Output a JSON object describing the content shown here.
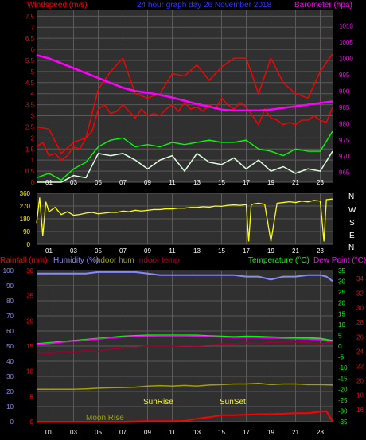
{
  "header": {
    "left": "Windspeed (m/s)",
    "center": "24 hour graph day   26 November 2018",
    "right": "Barometer (hpa)"
  },
  "colors": {
    "bg": "#000000",
    "plot_bg": "#303030",
    "grid": "#5a5a5a",
    "red": "#ff0000",
    "blue": "#3333ff",
    "magenta": "#ff00ff",
    "green": "#00ff00",
    "yellow": "#ffff00",
    "lavender": "#8888ff",
    "olive": "#a0a000",
    "darkred": "#a00030",
    "pale": "#ddffdd",
    "white": "#ffffff"
  },
  "x_hours": [
    "01",
    "03",
    "05",
    "07",
    "09",
    "11",
    "13",
    "15",
    "17",
    "19",
    "21",
    "23"
  ],
  "chart_data": [
    {
      "type": "line",
      "name": "wind_baro",
      "ylabel_left": "Windspeed (m/s)",
      "ylabel_right": "Barometer (hpa)",
      "y_left_ticks": [
        "0",
        "0.5",
        "1",
        "1.5",
        "2",
        "2.5",
        "3",
        "3.5",
        "4",
        "4.5",
        "5",
        "5.5",
        "6",
        "6.5",
        "7",
        "7.5"
      ],
      "y_left_range": [
        0,
        7.8
      ],
      "y_right_ticks": [
        "965",
        "970",
        "975",
        "980",
        "985",
        "990",
        "995",
        "1000",
        "1005",
        "1010"
      ],
      "y_right_range": [
        962,
        1015
      ],
      "x_range": [
        0,
        24
      ],
      "series": [
        {
          "name": "Barometer (hpa)",
          "color": "#ff00ff",
          "x": [
            0,
            1,
            2,
            3,
            4,
            5,
            6,
            7,
            8,
            9,
            10,
            11,
            12,
            13,
            14,
            15,
            16,
            17,
            18,
            19,
            20,
            21,
            22,
            23,
            24
          ],
          "y": [
            1001,
            1000,
            998.5,
            997,
            995.5,
            994,
            992.5,
            991,
            990,
            989.5,
            988.8,
            988,
            987,
            986,
            985.2,
            984.3,
            984,
            984,
            984,
            984.3,
            984.8,
            985.3,
            985.8,
            986.3,
            986.8
          ]
        },
        {
          "x": [
            0,
            0.5,
            1,
            1.5,
            2,
            2.5,
            3,
            3.5,
            4,
            4.5,
            5,
            5.5,
            6,
            6.5,
            7,
            7.5,
            8,
            8.5,
            9,
            9.5,
            10,
            10.5,
            11,
            11.5,
            12,
            12.5,
            13,
            13.5,
            14,
            14.5,
            15,
            15.5,
            16,
            16.5,
            17,
            17.5,
            18,
            18.5,
            19,
            19.5,
            20,
            20.5,
            21,
            21.5,
            22,
            22.5,
            23,
            23.5,
            24
          ],
          "y": [
            1.6,
            1.8,
            1.2,
            1.3,
            1.0,
            1.2,
            1.6,
            1.5,
            2.0,
            2.3,
            3.3,
            3.5,
            3.1,
            3.2,
            3.5,
            3.2,
            2.9,
            3.3,
            3.0,
            3.1,
            3.0,
            3.3,
            3.5,
            3.2,
            3.6,
            3.3,
            3.4,
            3.2,
            3.5,
            3.3,
            3.8,
            3.5,
            3.3,
            3.6,
            3.4,
            3.0,
            2.6,
            3.3,
            2.9,
            2.8,
            2.6,
            2.7,
            2.6,
            2.8,
            2.8,
            3.0,
            2.8,
            2.7,
            3.4
          ],
          "color": "#ff0000"
        },
        {
          "x": [
            0,
            1,
            2,
            3,
            4,
            5,
            6,
            7,
            8,
            9,
            10,
            11,
            12,
            13,
            14,
            15,
            16,
            17,
            18,
            19,
            20,
            21,
            22,
            23,
            24
          ],
          "y": [
            2.5,
            2.4,
            1.3,
            1.8,
            2.0,
            4.2,
            5.0,
            5.6,
            4.0,
            3.8,
            4.0,
            4.9,
            4.8,
            5.3,
            4.6,
            5.2,
            5.6,
            5.6,
            4.0,
            5.6,
            4.5,
            4.0,
            3.8,
            5.0,
            5.8
          ],
          "color": "#ff0000"
        },
        {
          "x": [
            0,
            1,
            2,
            3,
            4,
            5,
            6,
            7,
            8,
            9,
            10,
            11,
            12,
            13,
            14,
            15,
            16,
            17,
            18,
            19,
            20,
            21,
            22,
            23,
            24
          ],
          "y": [
            0.2,
            0.4,
            0.1,
            0.6,
            0.9,
            1.6,
            1.9,
            2.0,
            1.6,
            1.7,
            1.6,
            1.8,
            1.7,
            1.8,
            1.9,
            1.8,
            1.8,
            1.9,
            1.5,
            1.4,
            1.2,
            1.5,
            1.4,
            1.4,
            2.3
          ],
          "color": "#00ff00"
        },
        {
          "x": [
            0,
            1,
            2,
            3,
            4,
            5,
            6,
            7,
            8,
            9,
            10,
            11,
            12,
            13,
            14,
            15,
            16,
            17,
            18,
            19,
            20,
            21,
            22,
            23,
            24
          ],
          "y": [
            0,
            0,
            0,
            0.3,
            0.2,
            1.3,
            1.2,
            1.3,
            1.0,
            0.6,
            1.0,
            1.2,
            0.5,
            1.3,
            0.9,
            0.8,
            1.1,
            0.6,
            1.0,
            0.5,
            0.7,
            0.4,
            0.6,
            0.5,
            1.4
          ],
          "color": "#ddffdd"
        }
      ]
    },
    {
      "type": "line",
      "name": "wind_direction",
      "y_ticks": [
        "0",
        "90",
        "180",
        "270",
        "360"
      ],
      "y_range": [
        0,
        360
      ],
      "x_range": [
        0,
        24
      ],
      "right_labels": [
        "N",
        "W",
        "S",
        "E",
        "N"
      ],
      "series": [
        {
          "color": "#ffff00",
          "x": [
            0,
            0.25,
            0.5,
            0.75,
            1,
            1.5,
            2,
            2.5,
            3,
            3.5,
            4,
            4.5,
            5,
            5.5,
            6,
            6.5,
            7,
            7.5,
            8,
            8.5,
            9,
            9.5,
            10,
            10.5,
            11,
            11.5,
            12,
            12.5,
            13,
            13.5,
            14,
            14.5,
            15,
            15.5,
            16,
            16.5,
            17,
            17.2,
            17.4,
            17.6,
            18,
            18.5,
            19,
            19.5,
            20,
            20.5,
            21,
            21.5,
            22,
            22.5,
            23,
            23.3,
            23.5,
            24
          ],
          "y": [
            150,
            330,
            60,
            300,
            230,
            260,
            210,
            230,
            205,
            210,
            220,
            225,
            215,
            220,
            225,
            225,
            235,
            230,
            240,
            235,
            240,
            245,
            245,
            250,
            250,
            255,
            255,
            260,
            260,
            265,
            262,
            270,
            268,
            275,
            278,
            275,
            280,
            20,
            278,
            285,
            290,
            282,
            20,
            290,
            295,
            300,
            295,
            305,
            300,
            310,
            305,
            20,
            315,
            320
          ]
        }
      ]
    },
    {
      "type": "line",
      "name": "temperature_humidity",
      "left_headers": [
        "Rainfall (mm)",
        "Humidity (%)",
        "Indoor hum",
        "Indoor temp"
      ],
      "right_headers": [
        "Temperature (°C)",
        "Dew Point (°C)"
      ],
      "y_left_ticks": [
        "0",
        "10",
        "20",
        "30",
        "40",
        "50",
        "60",
        "70",
        "80",
        "90",
        "100"
      ],
      "y_left_range": [
        0,
        100
      ],
      "y_left2_ticks": [
        "0",
        "5",
        "10",
        "15",
        "20",
        "25",
        "30"
      ],
      "y_temp_ticks": [
        "-35",
        "-30",
        "-25",
        "-20",
        "-15",
        "-10",
        "-5",
        "0",
        "5",
        "10",
        "15",
        "20",
        "25",
        "30",
        "35"
      ],
      "y_temp_range": [
        -35,
        35
      ],
      "y_indoor_ticks": [
        "16",
        "18",
        "20",
        "22",
        "24",
        "26",
        "28",
        "30",
        "32",
        "34"
      ],
      "x_range": [
        0,
        24
      ],
      "annotations": [
        {
          "text": "Moon Rise",
          "x": 4.5
        },
        {
          "text": "SunRise",
          "x": 8.3
        },
        {
          "text": "SunSet",
          "x": 15.8
        }
      ],
      "series": [
        {
          "color": "#8888ff",
          "x": [
            0,
            1,
            2,
            3,
            4,
            5,
            6,
            7,
            8,
            9,
            10,
            11,
            12,
            13,
            14,
            15,
            16,
            17,
            18,
            19,
            20,
            21,
            22,
            23,
            23.5,
            24
          ],
          "y": [
            98,
            98,
            98,
            98,
            98,
            99,
            99,
            99,
            99,
            98,
            97,
            97,
            97,
            97,
            97,
            97,
            97,
            96,
            96,
            94,
            96,
            96,
            97,
            97,
            96,
            93
          ]
        },
        {
          "color": "#00ff00",
          "x": [
            0,
            1,
            2,
            3,
            4,
            5,
            6,
            7,
            8,
            9,
            10,
            11,
            12,
            13,
            14,
            15,
            16,
            17,
            18,
            19,
            20,
            21,
            22,
            23,
            24
          ],
          "y": [
            1,
            1.5,
            2,
            2.5,
            3,
            3.5,
            4,
            4.5,
            4.8,
            5,
            5,
            5,
            5,
            5,
            4.7,
            4.5,
            4.3,
            4.5,
            4.4,
            4.2,
            4,
            3.8,
            3.8,
            3.5,
            2.5
          ]
        },
        {
          "color": "#ff00ff",
          "x": [
            0,
            1,
            2,
            3,
            4,
            5,
            6,
            7,
            8,
            9,
            10,
            11,
            12,
            13,
            14,
            15,
            16,
            17,
            18,
            19,
            20,
            21,
            22,
            23,
            24
          ],
          "y": [
            0.8,
            1.2,
            1.8,
            2.3,
            2.8,
            3.3,
            3.8,
            4.2,
            4.5,
            4.7,
            4.8,
            4.8,
            4.8,
            4.7,
            4.4,
            4.2,
            4,
            4.1,
            4,
            3.8,
            3.6,
            3.4,
            3.3,
            3.0,
            2.0
          ]
        },
        {
          "color": "#a00030",
          "x": [
            0,
            1,
            2,
            3,
            4,
            5,
            6,
            7,
            8,
            9,
            10,
            11,
            12,
            13,
            14,
            15,
            16,
            17,
            18,
            19,
            20,
            21,
            22,
            23,
            24
          ],
          "y": [
            -3,
            -3.5,
            -2.5,
            -3,
            -2,
            -2.5,
            -1.5,
            -1,
            -0.5,
            0,
            0,
            0,
            0.3,
            0.2,
            0.5,
            1,
            1,
            1.5,
            1.2,
            1.8,
            1.8,
            2,
            1.5,
            1.0,
            1.8
          ]
        },
        {
          "color": "#a0a000",
          "x": [
            0,
            1,
            2,
            3,
            4,
            5,
            6,
            7,
            8,
            9,
            10,
            11,
            12,
            13,
            14,
            15,
            16,
            17,
            18,
            19,
            20,
            21,
            22,
            23,
            24
          ],
          "y": [
            -20,
            -20,
            -20,
            -20,
            -19.8,
            -19.5,
            -19.3,
            -19.2,
            -19,
            -18.5,
            -18.3,
            -18.5,
            -18.2,
            -18.5,
            -18,
            -17.8,
            -17.5,
            -17.5,
            -17.2,
            -17.8,
            -17.5,
            -17.5,
            -17.8,
            -17.8,
            -18
          ]
        },
        {
          "color": "#ff0000",
          "x": [
            0,
            1,
            2,
            3,
            4,
            5,
            6,
            7,
            8,
            9,
            10,
            11,
            12,
            13,
            14,
            15,
            16,
            17,
            18,
            19,
            20,
            21,
            22,
            23,
            23.5,
            24
          ],
          "y": [
            0,
            0,
            0,
            0,
            0,
            0,
            0,
            0,
            0.05,
            0.1,
            0.1,
            0.1,
            0.15,
            0.6,
            0.9,
            1.3,
            1.3,
            1.4,
            1.5,
            1.5,
            1.6,
            1.7,
            1.7,
            2.0,
            2.1,
            0.1
          ]
        }
      ]
    }
  ]
}
